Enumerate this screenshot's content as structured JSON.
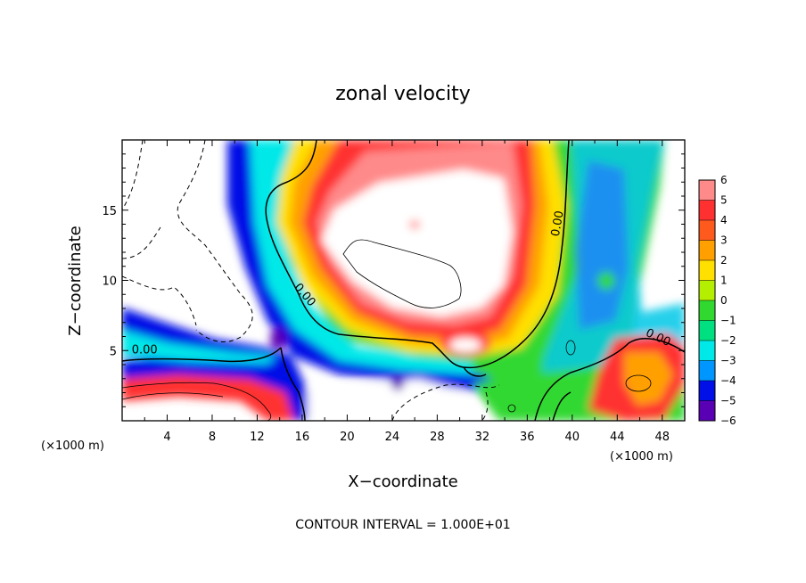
{
  "chart_data": {
    "type": "heatmap",
    "title": "zonal velocity",
    "xlabel": "X−coordinate",
    "ylabel": "Z−coordinate",
    "x_unit": "(×1000 m)",
    "y_unit": "(×1000 m)",
    "x_range": [
      0,
      50
    ],
    "y_range": [
      0,
      20
    ],
    "x_ticks": [
      4,
      8,
      12,
      16,
      20,
      24,
      28,
      32,
      36,
      40,
      44,
      48
    ],
    "y_ticks": [
      5,
      10,
      15
    ],
    "colorbar": {
      "min": -6,
      "max": 6,
      "labels": [
        "6",
        "5",
        "4",
        "3",
        "2",
        "1",
        "0",
        "−1",
        "−2",
        "−3",
        "−4",
        "−5",
        "−6"
      ],
      "colors": [
        "#ff8a8a",
        "#ff3030",
        "#ff5a1e",
        "#ffa000",
        "#ffe000",
        "#b4ee00",
        "#30d830",
        "#00e080",
        "#00e8e8",
        "#0096ff",
        "#0010e6",
        "#5a00b4",
        "#5a00b4"
      ]
    },
    "contour_labels": [
      {
        "text": "0.00",
        "x": 2,
        "y": 4.8,
        "angle": 0
      },
      {
        "text": "0.00",
        "x": 16,
        "y": 8.8,
        "angle": 50
      },
      {
        "text": "0.00",
        "x": 39,
        "y": 14,
        "angle": -80
      },
      {
        "text": "0.00",
        "x": 47.5,
        "y": 5.7,
        "angle": 25
      }
    ],
    "grid": false,
    "legend": "right"
  },
  "footer": "CONTOUR INTERVAL = 1.000E+01"
}
